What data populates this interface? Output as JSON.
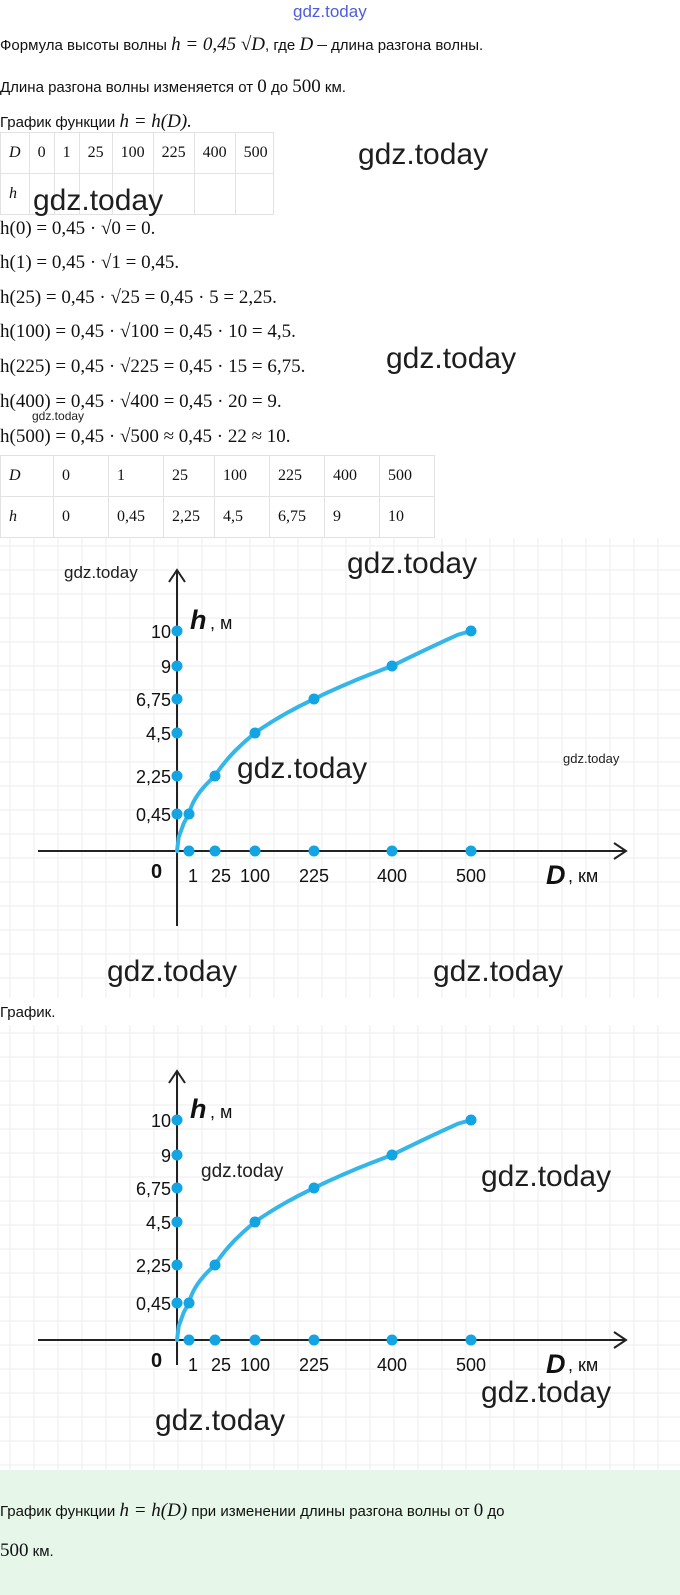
{
  "watermark": "gdz.today",
  "intro": {
    "line1_pre": "Формула высоты волны",
    "line1_formula": "h = 0,45 √D",
    "line1_post": ", где",
    "line1_var": "D",
    "line1_dash": "–",
    "line1_end": "длина разгона волны.",
    "line2_pre": "Длина разгона волны изменяется от",
    "line2_from": "0",
    "line2_mid": "до",
    "line2_to": "500",
    "line2_post": "км.",
    "line3_pre": "График функции",
    "line3_formula": "h = h(D)."
  },
  "table1": {
    "row1": [
      "D",
      "0",
      "1",
      "25",
      "100",
      "225",
      "400",
      "500"
    ],
    "row2": [
      "h",
      "",
      "",
      "",
      "",
      "",
      "",
      ""
    ]
  },
  "calculations": [
    "h(0) = 0,45 · √0 = 0.",
    "h(1) = 0,45 · √1 = 0,45.",
    "h(25) = 0,45 · √25 = 0,45 · 5 = 2,25.",
    "h(100) = 0,45 · √100 = 0,45 · 10 = 4,5.",
    "h(225) = 0,45 · √225 = 0,45 · 15 = 6,75.",
    "h(400) = 0,45 · √400 = 0,45 · 20 = 9.",
    "h(500) = 0,45 · √500 ≈ 0,45 · 22 ≈ 10."
  ],
  "table2": {
    "row1": [
      "D",
      "0",
      "1",
      "25",
      "100",
      "225",
      "400",
      "500"
    ],
    "row2": [
      "h",
      "0",
      "0,45",
      "2,25",
      "4,5",
      "6,75",
      "9",
      "10"
    ]
  },
  "graph_caption": "График.",
  "footer": {
    "pre": "График функции",
    "formula": "h = h(D)",
    "mid": "при изменении длины разгона волны от",
    "from": "0",
    "to_word": "до",
    "to": "500",
    "unit": "км."
  },
  "chart_data": [
    {
      "type": "line",
      "x_axis_label": "D",
      "x_unit": ", км",
      "y_axis_label": "h",
      "y_unit": ", м",
      "origin_label": "0",
      "x_ticks": [
        "1",
        "25",
        "100",
        "225",
        "400",
        "500"
      ],
      "y_ticks": [
        "0,45",
        "2,25",
        "4,5",
        "6,75",
        "9",
        "10"
      ],
      "x": [
        0,
        1,
        25,
        100,
        225,
        400,
        500
      ],
      "y": [
        0,
        0.45,
        2.25,
        4.5,
        6.75,
        9,
        10
      ],
      "line_color": "#35b6ea",
      "point_color": "#13a4e4",
      "grid": true
    },
    {
      "type": "line",
      "x_axis_label": "D",
      "x_unit": ", км",
      "y_axis_label": "h",
      "y_unit": ", м",
      "origin_label": "0",
      "x_ticks": [
        "1",
        "25",
        "100",
        "225",
        "400",
        "500"
      ],
      "y_ticks": [
        "0,45",
        "2,25",
        "4,5",
        "6,75",
        "9",
        "10"
      ],
      "x": [
        0,
        1,
        25,
        100,
        225,
        400,
        500
      ],
      "y": [
        0,
        0.45,
        2.25,
        4.5,
        6.75,
        9,
        10
      ],
      "line_color": "#35b6ea",
      "point_color": "#13a4e4",
      "grid": true
    }
  ]
}
